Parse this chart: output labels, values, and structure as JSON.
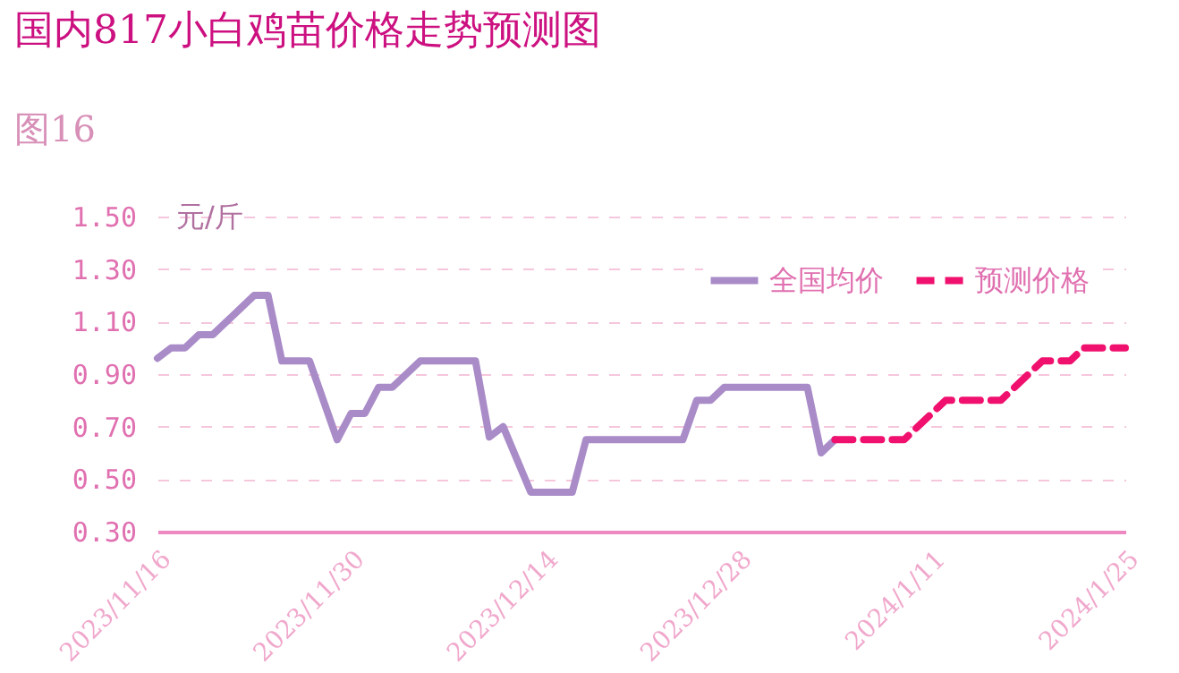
{
  "chart_data": {
    "type": "line",
    "title": "国内817小白鸡苗价格走势预测图",
    "ylabel": "元/斤",
    "annotations": [
      "图16"
    ],
    "xlim": [
      "2023-11-16",
      "2024-01-25"
    ],
    "xticks": [
      {
        "value": "2023-11-16",
        "label": "2023/11/16"
      },
      {
        "value": "2023-11-30",
        "label": "2023/11/30"
      },
      {
        "value": "2023-12-14",
        "label": "2023/12/14"
      },
      {
        "value": "2023-12-28",
        "label": "2023/12/28"
      },
      {
        "value": "2024-01-11",
        "label": "2024/1/11"
      },
      {
        "value": "2024-01-25",
        "label": "2024/1/25"
      }
    ],
    "ylim": [
      0.3,
      1.5
    ],
    "yticks": [
      {
        "value": 0.3,
        "label": "0.30"
      },
      {
        "value": 0.5,
        "label": "0.50"
      },
      {
        "value": 0.7,
        "label": "0.70"
      },
      {
        "value": 0.9,
        "label": "0.90"
      },
      {
        "value": 1.1,
        "label": "1.10"
      },
      {
        "value": 1.3,
        "label": "1.30"
      },
      {
        "value": 1.5,
        "label": "1.50"
      }
    ],
    "grid": "y",
    "legend": "top right",
    "marker": "none",
    "series": [
      {
        "name": "全国均价",
        "color": "#a98bc8",
        "line_style": "solid",
        "x": [
          "2023-11-16",
          "2023-11-17",
          "2023-11-18",
          "2023-11-19",
          "2023-11-20",
          "2023-11-23",
          "2023-11-24",
          "2023-11-25",
          "2023-11-27",
          "2023-11-29",
          "2023-11-30",
          "2023-12-01",
          "2023-12-02",
          "2023-12-03",
          "2023-12-05",
          "2023-12-09",
          "2023-12-10",
          "2023-12-11",
          "2023-12-13",
          "2023-12-16",
          "2023-12-17",
          "2023-12-24",
          "2023-12-25",
          "2023-12-26",
          "2023-12-27",
          "2024-01-02",
          "2024-01-03",
          "2024-01-04"
        ],
        "values": [
          0.96,
          1.0,
          1.0,
          1.05,
          1.05,
          1.2,
          1.2,
          0.95,
          0.95,
          0.65,
          0.75,
          0.75,
          0.85,
          0.85,
          0.95,
          0.95,
          0.66,
          0.7,
          0.45,
          0.45,
          0.65,
          0.65,
          0.8,
          0.8,
          0.85,
          0.85,
          0.6,
          0.65
        ]
      },
      {
        "name": "预测价格",
        "color": "#f0106e",
        "line_style": "dashed",
        "x": [
          "2024-01-04",
          "2024-01-09",
          "2024-01-12",
          "2024-01-16",
          "2024-01-19",
          "2024-01-21",
          "2024-01-22",
          "2024-01-25"
        ],
        "values": [
          0.65,
          0.65,
          0.8,
          0.8,
          0.95,
          0.95,
          1.0,
          1.0
        ]
      }
    ]
  }
}
